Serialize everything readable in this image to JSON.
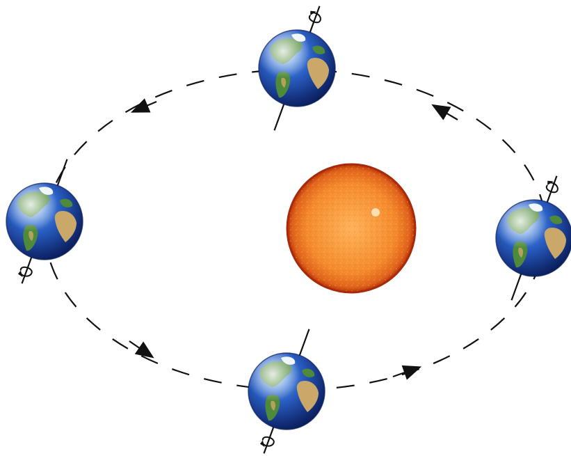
{
  "diagram": {
    "central_body": "sun",
    "orbiting_body": "earth",
    "earth_positions": 4,
    "orbit_direction": "counterclockwise",
    "orbit_style": "dashed",
    "axis_tilt_visible": true,
    "rotation_arrows_on_axis": true,
    "colors": {
      "sun_core": "#f48a2c",
      "sun_rim": "#b5300a",
      "ocean": "#1e4fb0",
      "ocean_dark": "#0b1f5c",
      "land": "#4f8a3a",
      "desert": "#c9a86a",
      "ice": "#eef4fb",
      "line": "#111111"
    }
  }
}
